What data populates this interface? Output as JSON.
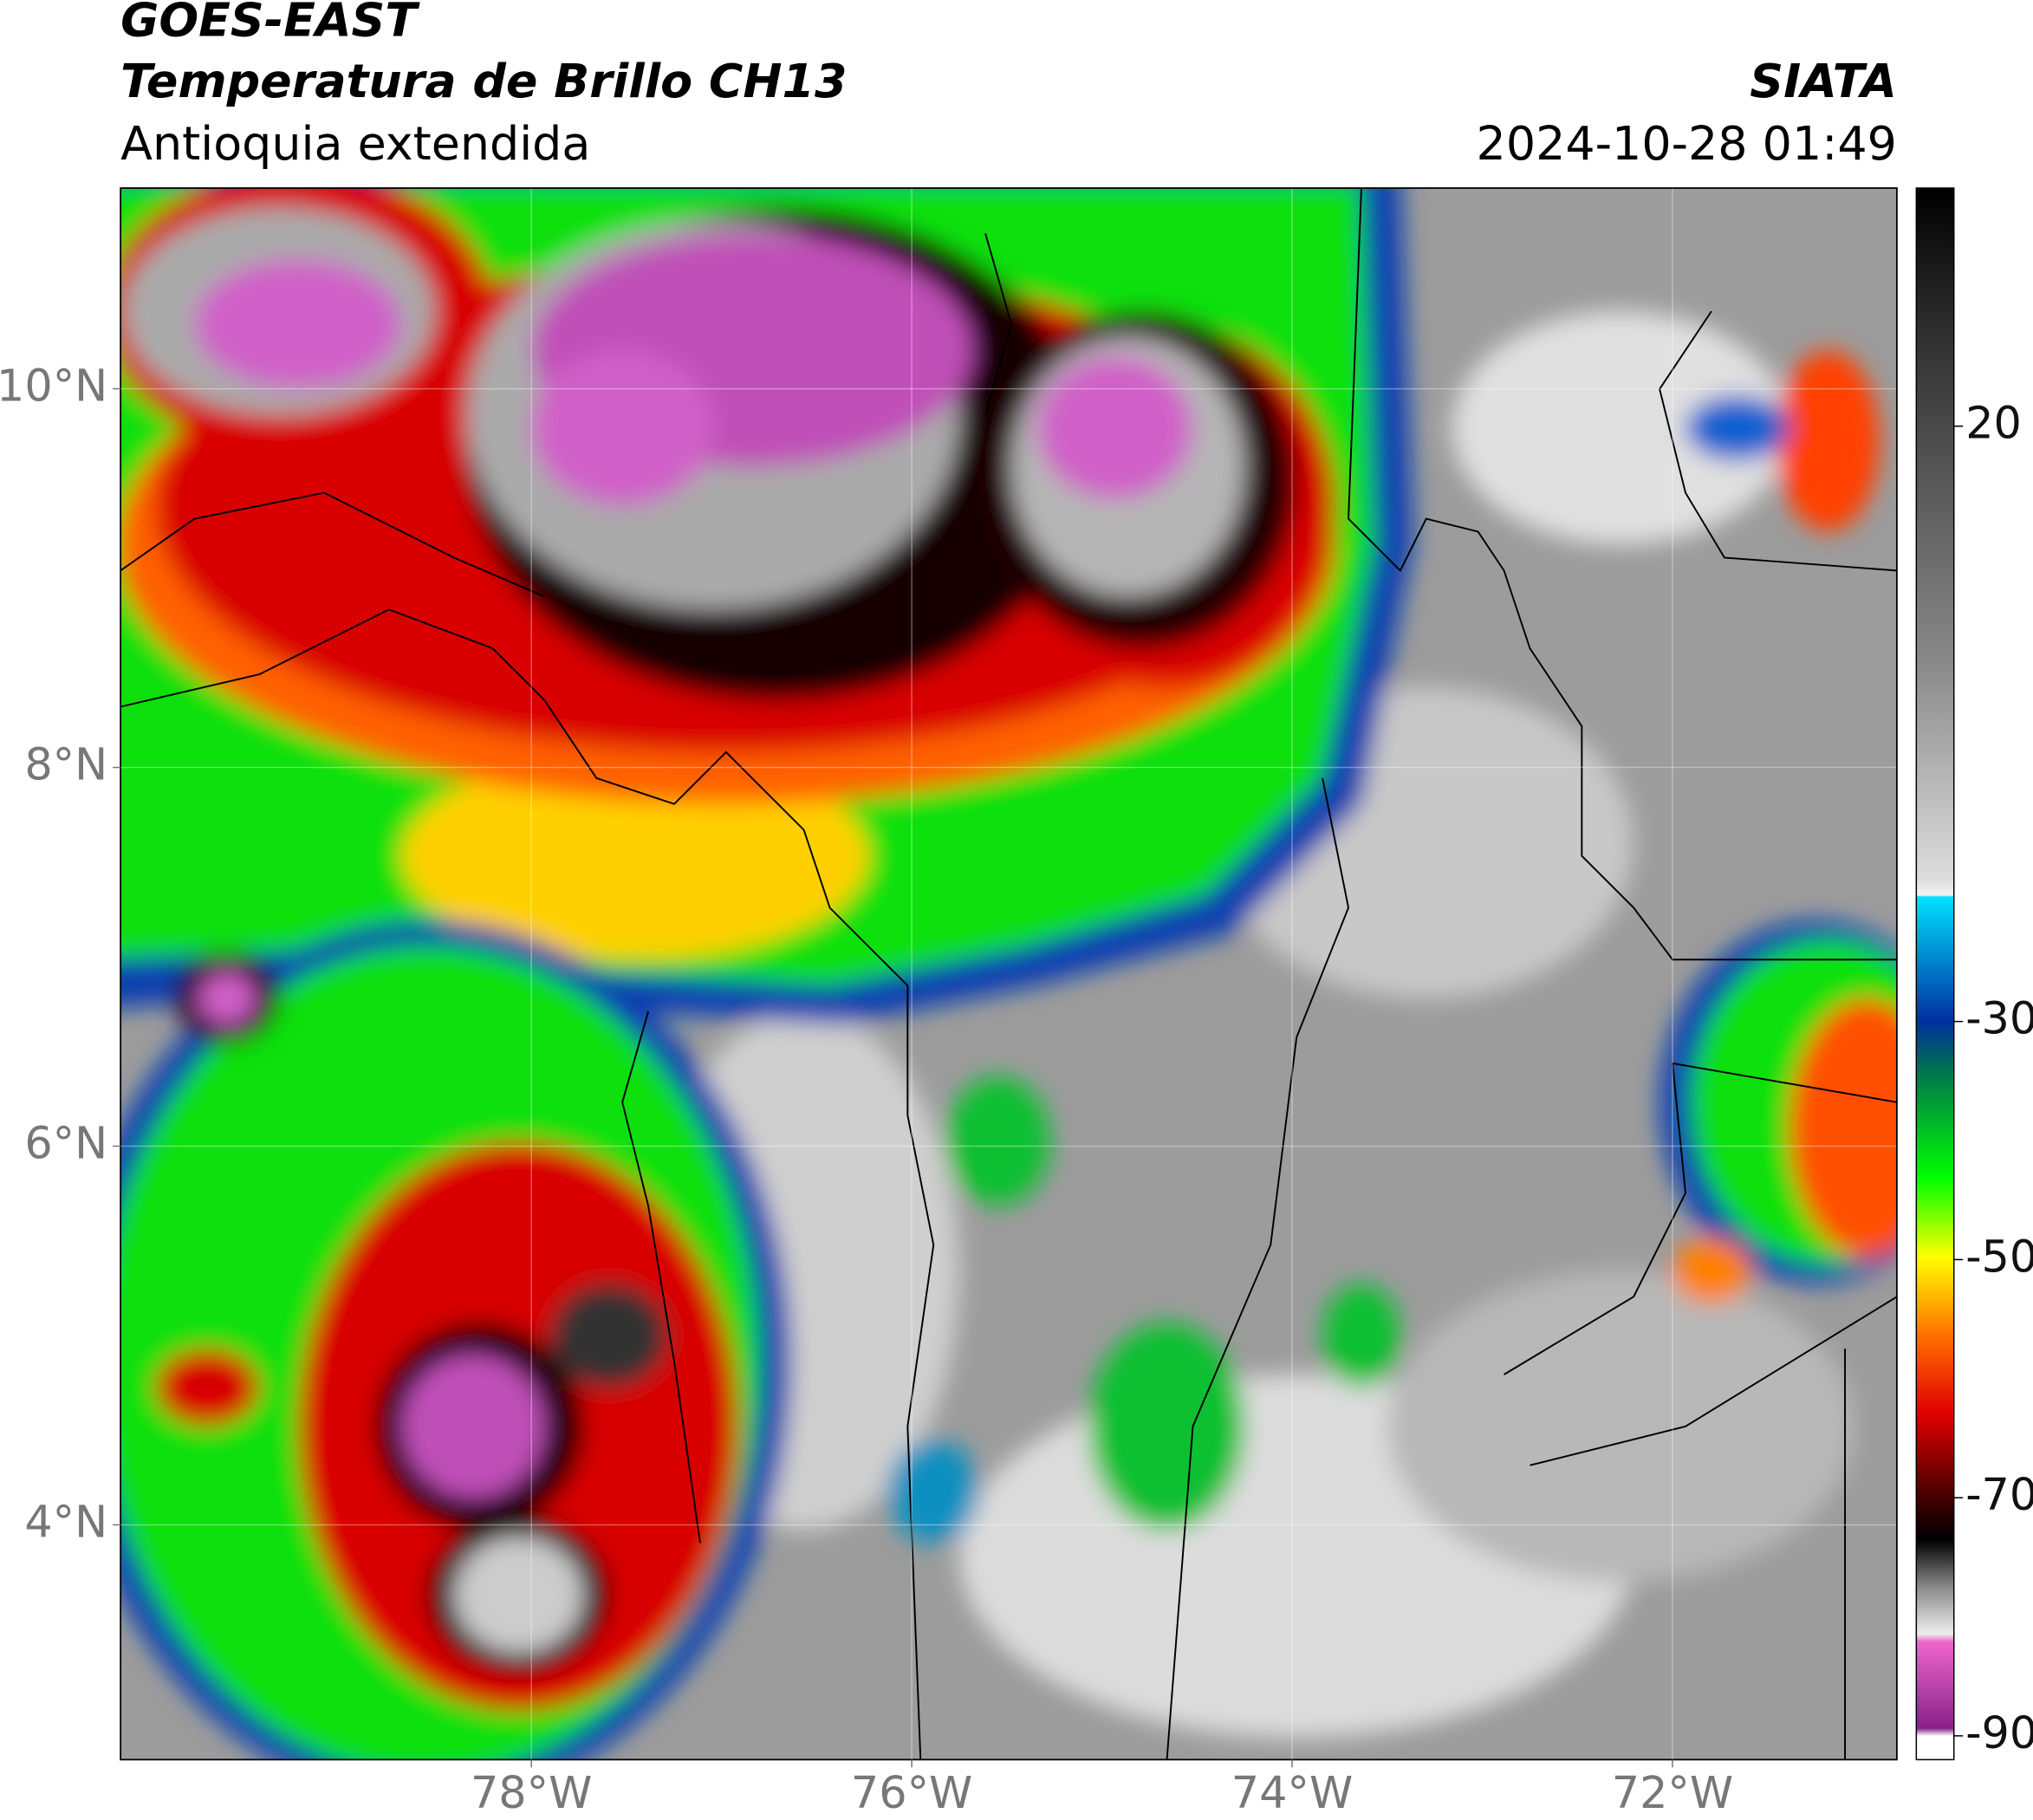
{
  "header": {
    "title": "GOES-EAST",
    "subtitle": "Temperatura de Brillo CH13",
    "region": "Antioquia extendida",
    "source": "SIATA",
    "datetime": "2024-10-28 01:49"
  },
  "map": {
    "latlim": [
      2.76,
      11.06
    ],
    "lonlim": [
      -80.16,
      -70.82
    ],
    "lat_ticks": [
      {
        "value": 10,
        "label": "10°N"
      },
      {
        "value": 8,
        "label": "8°N"
      },
      {
        "value": 6,
        "label": "6°N"
      },
      {
        "value": 4,
        "label": "4°N"
      }
    ],
    "lon_ticks": [
      {
        "value": -78,
        "label": "78°W"
      },
      {
        "value": -76,
        "label": "76°W"
      },
      {
        "value": -74,
        "label": "74°W"
      },
      {
        "value": -72,
        "label": "72°W"
      }
    ],
    "grid": true
  },
  "colorbar": {
    "lim": [
      -92,
      40
    ],
    "ticks": [
      20,
      -30,
      -50,
      -70,
      -90
    ]
  }
}
